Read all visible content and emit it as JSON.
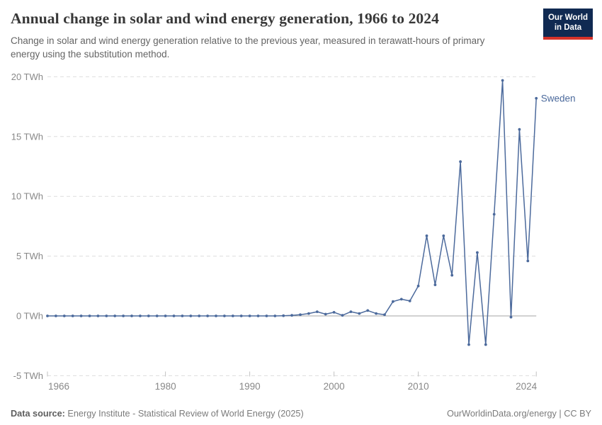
{
  "header": {
    "title": "Annual change in solar and wind energy generation, 1966 to 2024",
    "subtitle": "Change in solar and wind energy generation relative to the previous year, measured in terawatt-hours of primary energy using the substitution method.",
    "logo": {
      "line1": "Our World",
      "line2": "in Data"
    }
  },
  "chart_data": {
    "type": "line",
    "title": "Annual change in solar and wind energy generation, 1966 to 2024",
    "entity_label": "Sweden",
    "unit": "TWh",
    "xlabel": "",
    "ylabel": "TWh",
    "xlim": [
      1966,
      2024
    ],
    "ylim": [
      -5,
      20
    ],
    "grid": true,
    "legend_position": "end-of-line",
    "xticks": [
      1966,
      1980,
      1990,
      2000,
      2010,
      2024
    ],
    "yticks": [
      {
        "value": 20,
        "label": "20 TWh"
      },
      {
        "value": 15,
        "label": "15 TWh"
      },
      {
        "value": 10,
        "label": "10 TWh"
      },
      {
        "value": 5,
        "label": "5 TWh"
      },
      {
        "value": 0,
        "label": "0 TWh"
      },
      {
        "value": -5,
        "label": "-5 TWh"
      }
    ],
    "x_start_year": 1966,
    "values": [
      0,
      0,
      0,
      0,
      0,
      0,
      0,
      0,
      0,
      0,
      0,
      0,
      0,
      0,
      0,
      0,
      0,
      0,
      0,
      0,
      0,
      0,
      0,
      0,
      0,
      0,
      0,
      0,
      0.02,
      0.05,
      0.1,
      0.2,
      0.35,
      0.15,
      0.3,
      0.05,
      0.35,
      0.2,
      0.45,
      0.2,
      0.1,
      1.2,
      1.4,
      1.25,
      2.5,
      6.7,
      2.6,
      6.7,
      3.4,
      12.9,
      -2.4,
      5.3,
      -2.4,
      8.5,
      19.7,
      -0.1,
      15.6,
      4.6,
      18.2
    ]
  },
  "colors": {
    "line": "#4C6A9C",
    "grid": "#DDDDDD",
    "zero_line": "#A6A6A6",
    "tick": "#C2C2C2",
    "axis_text": "#888888",
    "logo_bg": "#102A52",
    "logo_red": "#D5332A"
  },
  "footer": {
    "datasource_label": "Data source:",
    "datasource_text": "Energy Institute - Statistical Review of World Energy (2025)",
    "rights": "OurWorldinData.org/energy | CC BY"
  }
}
